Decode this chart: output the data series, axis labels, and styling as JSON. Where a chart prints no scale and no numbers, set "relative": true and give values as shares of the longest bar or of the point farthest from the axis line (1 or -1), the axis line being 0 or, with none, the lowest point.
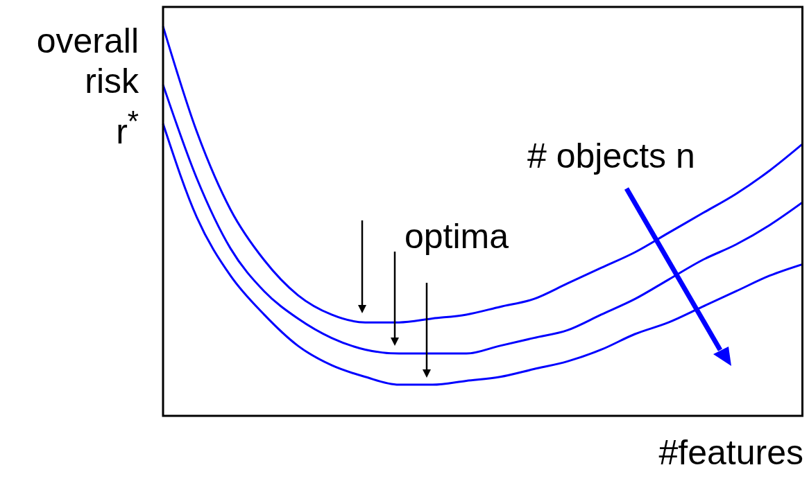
{
  "chart_data": {
    "type": "line",
    "relative": true,
    "ylabel": "overall risk r$^{*}$",
    "xlabel": "#features",
    "annotations": [
      "# objects n",
      "optima"
    ],
    "categories": [
      null,
      null,
      null,
      null,
      null,
      null,
      null,
      null,
      null,
      null,
      null,
      null,
      null,
      null,
      null,
      null,
      null,
      null,
      null,
      null
    ],
    "series": [
      {
        "color": "#0000ff",
        "values": [
          1,
          0.73,
          0.53,
          0.4,
          0.31,
          0.26,
          0.24,
          0.24,
          0.25,
          0.26,
          0.28,
          0.3,
          0.34,
          0.38,
          0.42,
          0.47,
          0.52,
          0.57,
          0.63,
          0.7
        ]
      },
      {
        "color": "#0000ff",
        "values": [
          0.85,
          0.61,
          0.43,
          0.32,
          0.25,
          0.2,
          0.17,
          0.16,
          0.16,
          0.16,
          0.18,
          0.2,
          0.22,
          0.26,
          0.3,
          0.35,
          0.4,
          0.44,
          0.49,
          0.55
        ]
      },
      {
        "color": "#0000ff",
        "values": [
          0.75,
          0.51,
          0.36,
          0.26,
          0.18,
          0.13,
          0.1,
          0.08,
          0.08,
          0.09,
          0.1,
          0.12,
          0.14,
          0.17,
          0.21,
          0.24,
          0.28,
          0.32,
          0.36,
          0.39
        ]
      }
    ],
    "marker": "none",
    "legend": false,
    "grid": false
  }
}
